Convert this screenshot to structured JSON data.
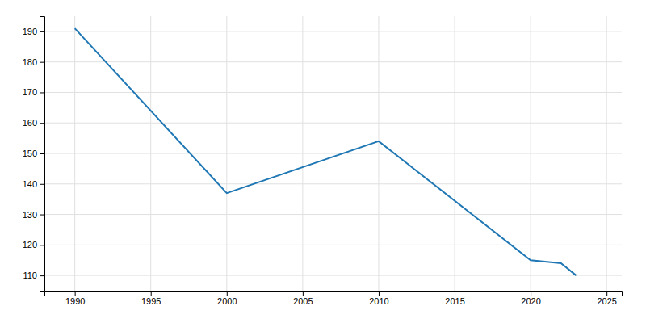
{
  "chart_data": {
    "type": "line",
    "x": [
      1990,
      2000,
      2010,
      2020,
      2022,
      2023
    ],
    "values": [
      191,
      137,
      154,
      115,
      114,
      110
    ],
    "xlim": [
      1988,
      2026
    ],
    "ylim": [
      105,
      195
    ],
    "xticks": [
      1990,
      1995,
      2000,
      2005,
      2010,
      2015,
      2020,
      2025
    ],
    "yticks": [
      110,
      120,
      130,
      140,
      150,
      160,
      170,
      180,
      190
    ],
    "grid": true
  }
}
